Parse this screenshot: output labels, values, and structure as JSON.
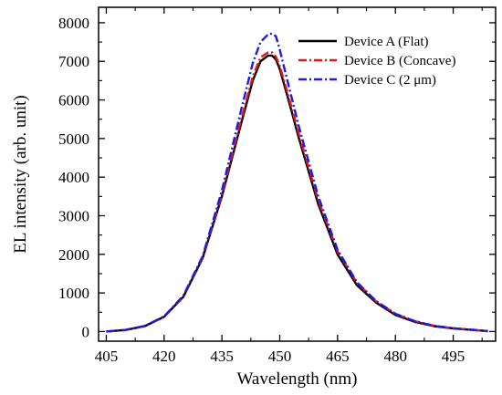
{
  "chart_data": {
    "type": "line",
    "title": "",
    "xlabel": "Wavelength (nm)",
    "ylabel": "EL intensity (arb. unit)",
    "xlim": [
      403,
      506
    ],
    "ylim": [
      -250,
      8400
    ],
    "x_ticks": [
      405,
      420,
      435,
      450,
      465,
      480,
      495
    ],
    "y_ticks": [
      0,
      1000,
      2000,
      3000,
      4000,
      5000,
      6000,
      7000,
      8000
    ],
    "grid": false,
    "legend_position": "top-right",
    "series": [
      {
        "name": "Device A (Flat)",
        "color": "#000000",
        "dash": "solid",
        "x": [
          405,
          410,
          415,
          420,
          425,
          430,
          435,
          440,
          443,
          445,
          447,
          448,
          449,
          450,
          452,
          455,
          460,
          465,
          470,
          475,
          480,
          485,
          490,
          495,
          500,
          504
        ],
        "y": [
          0,
          40,
          140,
          380,
          900,
          1900,
          3500,
          5400,
          6500,
          7000,
          7150,
          7150,
          7050,
          6800,
          6100,
          5000,
          3300,
          2000,
          1200,
          750,
          430,
          250,
          140,
          80,
          40,
          10
        ]
      },
      {
        "name": "Device B (Concave)",
        "color": "#e8141c",
        "dash": "dashdot",
        "x": [
          405,
          410,
          415,
          420,
          425,
          430,
          435,
          440,
          443,
          445,
          447,
          448,
          449,
          450,
          452,
          455,
          460,
          465,
          470,
          475,
          480,
          485,
          490,
          495,
          500,
          504
        ],
        "y": [
          0,
          40,
          145,
          390,
          920,
          1920,
          3550,
          5500,
          6600,
          7100,
          7230,
          7230,
          7120,
          6880,
          6200,
          5100,
          3400,
          2080,
          1260,
          780,
          460,
          270,
          150,
          85,
          45,
          10
        ]
      },
      {
        "name": "Device C (2 μm)",
        "color": "#1c1ce0",
        "dash": "dashdot",
        "x": [
          405,
          410,
          415,
          420,
          425,
          430,
          435,
          440,
          443,
          445,
          447,
          448,
          449,
          450,
          452,
          455,
          460,
          465,
          470,
          475,
          480,
          485,
          490,
          495,
          500,
          504
        ],
        "y": [
          0,
          40,
          145,
          390,
          930,
          1950,
          3650,
          5750,
          6950,
          7500,
          7700,
          7720,
          7650,
          7300,
          6500,
          5300,
          3500,
          2120,
          1280,
          790,
          460,
          270,
          150,
          85,
          45,
          10
        ]
      }
    ]
  }
}
